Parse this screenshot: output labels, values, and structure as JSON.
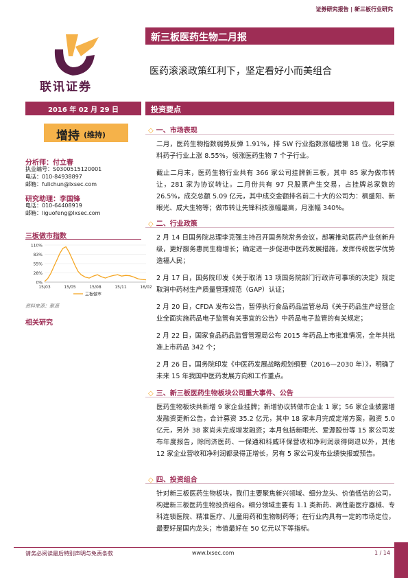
{
  "header": {
    "top_links": "证券研究报告 | 新三板行业研究",
    "logo_text": "联讯证券",
    "report_title": "新三板医药生物二月报",
    "subtitle": "医药滚滚政策红利下，坚定看好小而美组合",
    "date": "2016 年 02 月 29 日",
    "section_label": "投资要点"
  },
  "rating": {
    "main": "增持",
    "sub": "(维持)"
  },
  "analyst": {
    "title": "分析师：付立春",
    "lines": [
      "执业编号：S0300515120001",
      "电话：010-84938897",
      "邮箱：fulichun@lxsec.com"
    ]
  },
  "assistant": {
    "title": "研究助理：李国锋",
    "lines": [
      "电话：010-64408919",
      "邮箱：liguofeng@lxsec.com"
    ]
  },
  "chart_data": {
    "type": "line",
    "title": "三板做市指数",
    "x_ticks": [
      "15/03",
      "15/05",
      "15/08",
      "15/11",
      "16/02"
    ],
    "y_ticks": [
      "110%",
      "83%",
      "55%",
      "28%",
      "0%"
    ],
    "ylim": [
      0,
      1.1
    ],
    "legend": "三板做市",
    "series": [
      {
        "name": "三板做市",
        "x": [
          0,
          0.03,
          0.06,
          0.09,
          0.12,
          0.15,
          0.18,
          0.21,
          0.24,
          0.27,
          0.3,
          0.33,
          0.36,
          0.4,
          0.44,
          0.48,
          0.52,
          0.56,
          0.6,
          0.64,
          0.68,
          0.72,
          0.76,
          0.8,
          0.84,
          0.88,
          0.92,
          0.96,
          1.0
        ],
        "values": [
          0.02,
          0.1,
          0.25,
          0.45,
          0.65,
          0.85,
          1.0,
          1.05,
          0.9,
          0.7,
          0.5,
          0.32,
          0.22,
          0.15,
          0.12,
          0.18,
          0.22,
          0.16,
          0.12,
          0.17,
          0.2,
          0.22,
          0.18,
          0.2,
          0.19,
          0.15,
          0.1,
          0.08,
          0.07
        ]
      }
    ],
    "source": "资料来源：聚源"
  },
  "related_label": "相关研究",
  "sections": [
    {
      "heading": "一、市场表现",
      "paragraphs": [
        "二月，医药生物指数弱势反弹 1.91%，排 SW 行业指数涨幅榜第 18 位。化学原料药子行业上涨 8.55%，领涨医药生物 7 个子行业。",
        "截止二月末，医药生物行业共有 366 家公司挂牌新三板，其中 85 家为做市转让，281 家为协议转让。二月份共有 97 只股票产生交易，占挂牌总家数的 26.5%，成交总额 5.09 亿元，其中成交金额排名前二十大的公司为：枫盛阳、新眼光、成大生物等；做市转让先锋科技涨幅最高，月涨幅 340%。"
      ]
    },
    {
      "heading": "二、行业政策",
      "paragraphs": [
        "2 月 14 日国务院总理李克强主持召开国务院常务会议，部署推动医药产业创新升级，更好服务惠民生稳增长；确定进一步促进中医药发展措施，发挥传统医学优势造福人民；",
        "2 月 17 日，国务院印发《关于取消 13 项国务院部门行政许可事项的决定》规定取消中药材生产质量管理规范（GAP）认证；",
        "2 月 20 日，CFDA 发布公告，暂停执行食品药品监管总局《关于药品生产经营企业全面实施药品电子监管有关事宜的公告》中药品电子监管的有关规定；",
        "2 月 22 日，国家食品药品监督管理局公布 2015 年药品上市批准情况，全年共批准上市药品 342 个；",
        "2 月 26 日，国务院印发《中医药发展战略规划纲要（2016—2030 年）》，明确了未来 15 年我国中医药发展方向和工作重点。"
      ]
    },
    {
      "heading": "三、新三板医药生物板块公司重大事件、公告",
      "paragraphs": [
        "医药生物板块共新增 9 家企业挂牌；新增协议转做市企业 1 家；56 家企业披露增发融资更新公告，合计募资 35.2 亿元，其中 18 家本月完成定增方案，融资 5.0 亿元，另外 38 家尚未完成增发融资；本月包括新眼光、爱源股份等 15 家公司发布年度报告，除同济医药、一保通和科威环保营收和净利润录得倒退以外，其他 12 家企业营收和净利润都录得正增长，另有 5 家公司发布业绩快报或预告。"
      ]
    },
    {
      "heading": "四、投资组合",
      "paragraphs": [
        "针对新三板医药生物板块，我们主要聚焦新兴领域、细分龙头、价值低估的公司，构建新三板医药生物投资组合。细分领域主要有 1.1 类新药、高性能医疗器械、专科连锁医院、精准医疗、儿童用药和生物制药等；在行业内具有一定的市场定位，最要好是国内龙头；市值最好在 50 亿元以下等指标。"
      ]
    }
  ],
  "footer": {
    "disclaimer": "请务必阅读最后特别声明与免责条款",
    "website": "www.lxsec.com",
    "page": "1 / 14"
  }
}
